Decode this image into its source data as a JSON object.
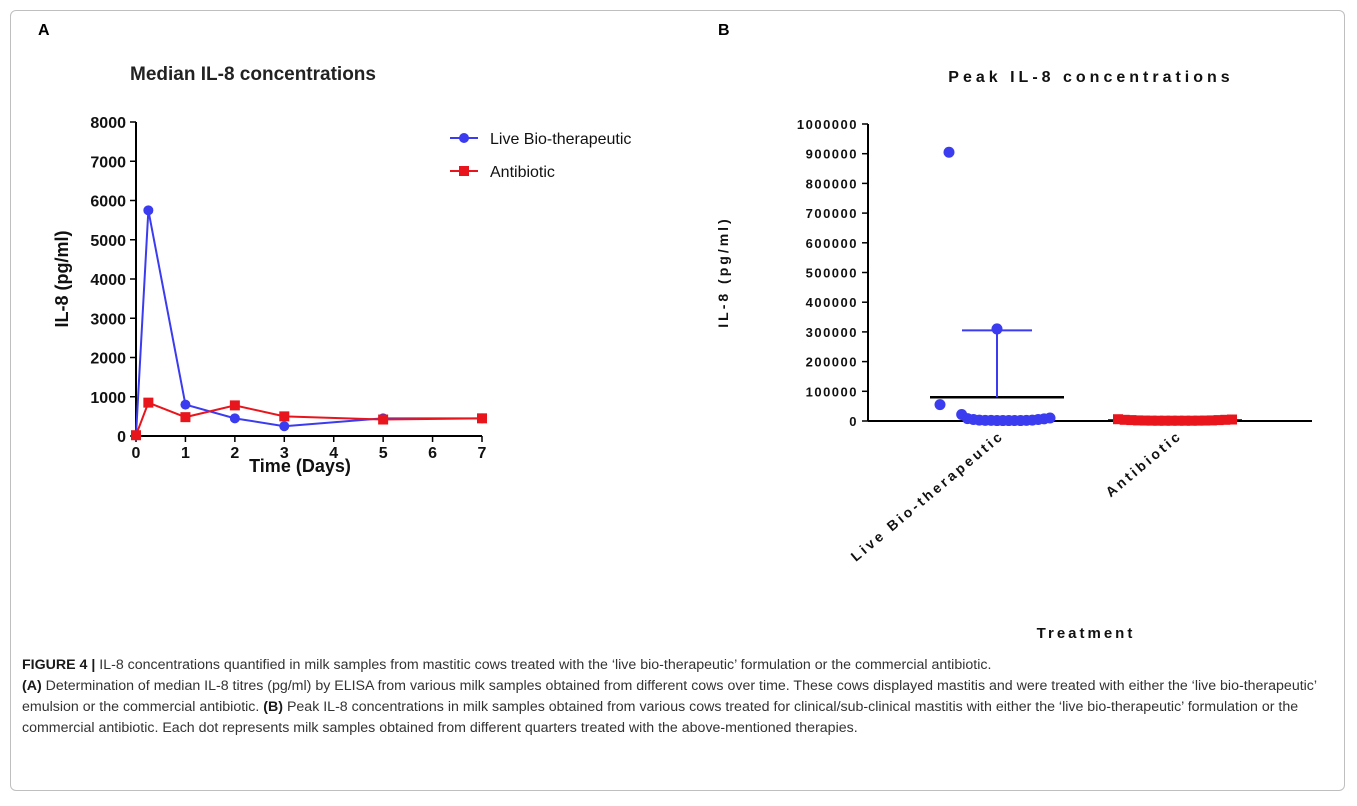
{
  "panels": {
    "a_label": "A",
    "b_label": "B"
  },
  "chart_data": [
    {
      "type": "line",
      "title": "Median IL-8 concentrations",
      "xlabel": "Time (Days)",
      "ylabel": "IL-8 (pg/ml)",
      "xlim": [
        0,
        7
      ],
      "ylim": [
        0,
        8000
      ],
      "x_ticks": [
        "0",
        "1",
        "2",
        "3",
        "4",
        "5",
        "6",
        "7"
      ],
      "y_ticks": [
        "0",
        "1000",
        "2000",
        "3000",
        "4000",
        "5000",
        "6000",
        "7000",
        "8000"
      ],
      "legend_position": "top-right",
      "series": [
        {
          "name": "Live Bio-therapeutic",
          "color": "#3b3bf0",
          "marker": "circle",
          "x": [
            0,
            0.25,
            1,
            2,
            3,
            5,
            7
          ],
          "y": [
            20,
            5750,
            800,
            450,
            250,
            450,
            450
          ]
        },
        {
          "name": "Antibiotic",
          "color": "#e8161c",
          "marker": "square",
          "x": [
            0,
            0.25,
            1,
            2,
            3,
            5,
            7
          ],
          "y": [
            20,
            850,
            480,
            780,
            500,
            420,
            450
          ]
        }
      ]
    },
    {
      "type": "scatter",
      "title": "Peak IL-8 concentrations",
      "xlabel": "Treatment",
      "ylabel": "IL-8 (pg/ml)",
      "ylim": [
        0,
        1000000
      ],
      "y_ticks": [
        "0",
        "100000",
        "200000",
        "300000",
        "400000",
        "500000",
        "600000",
        "700000",
        "800000",
        "900000",
        "1000000"
      ],
      "categories": [
        "Live Bio-therapeutic",
        "Antibiotic"
      ],
      "groups": [
        {
          "category": "Live Bio-therapeutic",
          "color": "#3b3bf0",
          "marker": "circle",
          "mean": 80000,
          "error_upper": 305000,
          "values": [
            905000,
            310000,
            55000,
            22000,
            8000,
            5000,
            3000,
            2000,
            2000,
            1500,
            1500,
            1500,
            1500,
            1500,
            2000,
            3000,
            5000,
            7000,
            10000
          ]
        },
        {
          "category": "Antibiotic",
          "color": "#e8161c",
          "marker": "square",
          "mean": 1500,
          "error_upper": 2500,
          "values": [
            6000,
            4000,
            3000,
            2000,
            1500,
            1200,
            1000,
            1000,
            1000,
            1000,
            1000,
            1000,
            1200,
            1500,
            2000,
            3000,
            4000,
            5000
          ]
        }
      ]
    }
  ],
  "caption": {
    "label": "FIGURE 4 |",
    "main": "IL-8 concentrations quantified in milk samples from mastitic cows treated with the ‘live bio-therapeutic’ formulation or the commercial antibiotic.",
    "a_label": "(A)",
    "a_text": "Determination of median IL-8 titres (pg/ml) by ELISA from various milk samples obtained from different cows over time. These cows displayed mastitis and were treated with either the ‘live bio-therapeutic’ emulsion or the commercial antibiotic.",
    "b_label": "(B)",
    "b_text": "Peak IL-8 concentrations in milk samples obtained from various cows treated for clinical/sub-clinical mastitis with either the ‘live bio-therapeutic’ formulation or the commercial antibiotic. Each dot represents milk samples obtained from different quarters treated with the above-mentioned therapies."
  }
}
